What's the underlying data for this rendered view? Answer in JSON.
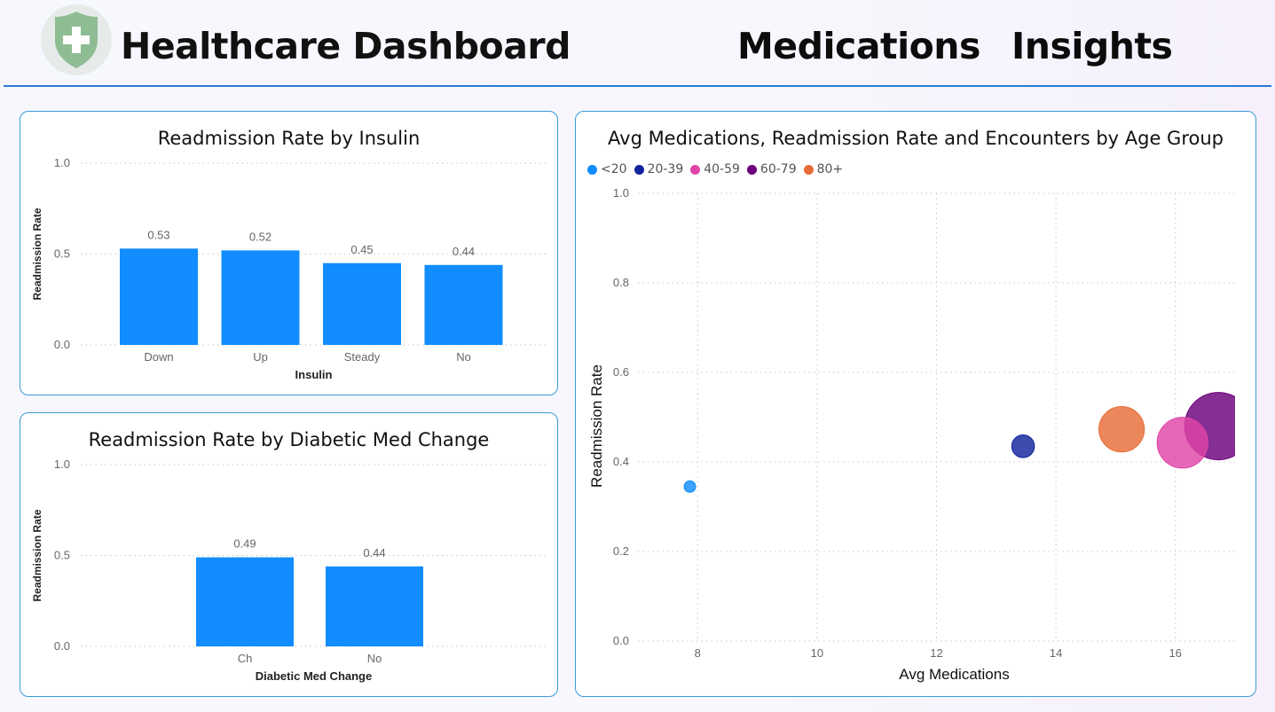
{
  "header": {
    "title": "Healthcare Dashboard",
    "nav": [
      "Medications",
      "Insights"
    ],
    "logo_icon": "shield-plus-icon",
    "logo_color": "#8ebc93"
  },
  "colors": {
    "bar": "#118dff",
    "card_border": "#3a9bd8",
    "header_rule": "#2a7bd3"
  },
  "chart_data": [
    {
      "type": "bar",
      "title": "Readmission Rate by Insulin",
      "categories": [
        "Down",
        "Up",
        "Steady",
        "No"
      ],
      "values": [
        0.53,
        0.52,
        0.45,
        0.44
      ],
      "data_labels": [
        "0.53",
        "0.52",
        "0.45",
        "0.44"
      ],
      "xlabel": "Insulin",
      "ylabel": "Readmission Rate",
      "ylim": [
        0,
        1
      ],
      "yticks": [
        "0.0",
        "0.5",
        "1.0"
      ],
      "grid": true,
      "color": "#118dff"
    },
    {
      "type": "bar",
      "title": "Readmission Rate by Diabetic Med Change",
      "categories": [
        "Ch",
        "No"
      ],
      "values": [
        0.49,
        0.44
      ],
      "data_labels": [
        "0.49",
        "0.44"
      ],
      "xlabel": "Diabetic Med Change",
      "ylabel": "Readmission Rate",
      "ylim": [
        0,
        1
      ],
      "yticks": [
        "0.0",
        "0.5",
        "1.0"
      ],
      "grid": true,
      "color": "#118dff"
    },
    {
      "type": "scatter",
      "title": "Avg Medications, Readmission Rate and Encounters by Age Group",
      "xlabel": "Avg Medications",
      "ylabel": "Readmission Rate",
      "xlim": [
        7,
        17
      ],
      "ylim": [
        0,
        1
      ],
      "xticks": [
        "8",
        "10",
        "12",
        "14",
        "16"
      ],
      "yticks": [
        "0.0",
        "0.2",
        "0.4",
        "0.6",
        "0.8",
        "1.0"
      ],
      "grid": true,
      "legend_position": "top-left",
      "series": [
        {
          "name": "<20",
          "x": 7.87,
          "y": 0.345,
          "size": 0.3,
          "color": "#118dff"
        },
        {
          "name": "20-39",
          "x": 13.45,
          "y": 0.435,
          "size": 1.7,
          "color": "#12239e"
        },
        {
          "name": "40-59",
          "x": 16.12,
          "y": 0.443,
          "size": 8.5,
          "color": "#e044a7"
        },
        {
          "name": "60-79",
          "x": 16.72,
          "y": 0.48,
          "size": 15.0,
          "color": "#6b007b"
        },
        {
          "name": "80+",
          "x": 15.1,
          "y": 0.473,
          "size": 6.8,
          "color": "#e66c37"
        }
      ]
    }
  ]
}
